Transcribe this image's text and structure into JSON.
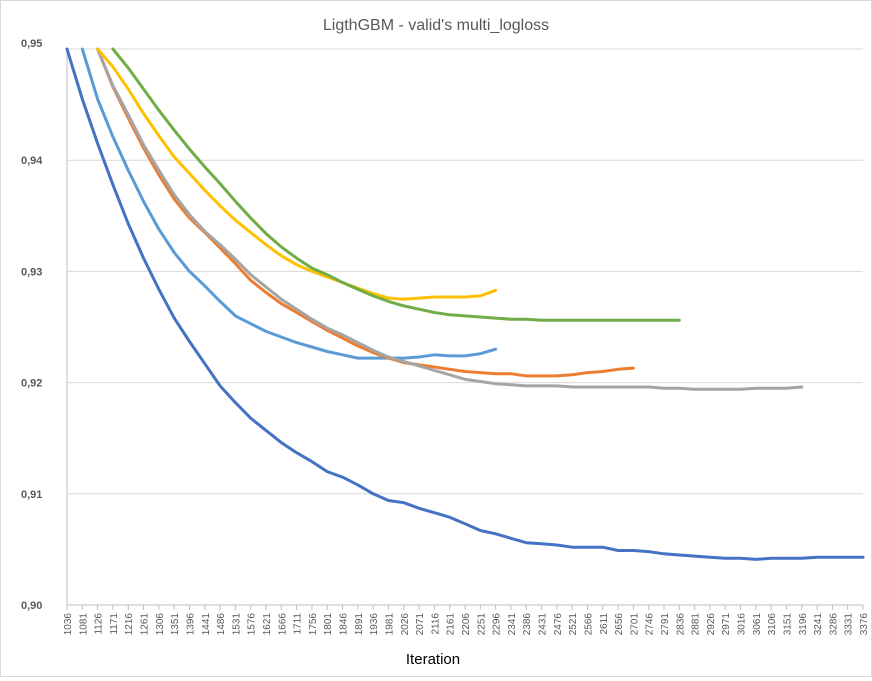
{
  "chart_data": {
    "type": "line",
    "title": "LigthGBM - valid's multi_logloss",
    "xlabel": "Iteration",
    "ylabel": "",
    "ylim": [
      0.9,
      0.95
    ],
    "xlim": [
      1036,
      3376
    ],
    "grid": "horizontal",
    "y_ticks": [
      "0,90",
      "0,91",
      "0,92",
      "0,93",
      "0,94",
      "0,95"
    ],
    "x_ticks": [
      "1036",
      "1081",
      "1126",
      "1171",
      "1216",
      "1261",
      "1306",
      "1351",
      "1396",
      "1441",
      "1486",
      "1531",
      "1576",
      "1621",
      "1666",
      "1711",
      "1756",
      "1801",
      "1846",
      "1891",
      "1936",
      "1981",
      "2026",
      "2071",
      "2116",
      "2161",
      "2206",
      "2251",
      "2296",
      "2341",
      "2386",
      "2431",
      "2476",
      "2521",
      "2566",
      "2611",
      "2656",
      "2701",
      "2746",
      "2791",
      "2836",
      "2881",
      "2926",
      "2971",
      "3016",
      "3061",
      "3106",
      "3151",
      "3196",
      "3241",
      "3286",
      "3331",
      "3376"
    ],
    "series": [
      {
        "color": "#4472c4",
        "x": [
          1036,
          1081,
          1126,
          1171,
          1216,
          1261,
          1306,
          1351,
          1396,
          1441,
          1486,
          1531,
          1576,
          1621,
          1666,
          1711,
          1756,
          1801,
          1846,
          1891,
          1936,
          1981,
          2026,
          2071,
          2116,
          2161,
          2206,
          2251,
          2296,
          2341,
          2386,
          2431,
          2476,
          2521,
          2566,
          2611,
          2656,
          2701,
          2746,
          2791,
          2836,
          2881,
          2926,
          2971,
          3016,
          3061,
          3106,
          3151,
          3196,
          3241,
          3286,
          3331,
          3376
        ],
        "values": [
          0.95,
          0.9455,
          0.9415,
          0.9378,
          0.9343,
          0.9312,
          0.9284,
          0.9258,
          0.9237,
          0.9217,
          0.9197,
          0.9182,
          0.9168,
          0.9157,
          0.9146,
          0.9137,
          0.9129,
          0.912,
          0.9115,
          0.9108,
          0.91,
          0.9094,
          0.9092,
          0.9087,
          0.9083,
          0.9079,
          0.9073,
          0.9067,
          0.9064,
          0.906,
          0.9056,
          0.9055,
          0.9054,
          0.9052,
          0.9052,
          0.9052,
          0.9049,
          0.9049,
          0.9048,
          0.9046,
          0.9045,
          0.9044,
          0.9043,
          0.9042,
          0.9042,
          0.9041,
          0.9042,
          0.9042,
          0.9042,
          0.9043,
          0.9043,
          0.9043,
          0.9043
        ]
      },
      {
        "color": "#5b9bd5",
        "x": [
          1081,
          1126,
          1171,
          1216,
          1261,
          1306,
          1351,
          1396,
          1441,
          1486,
          1531,
          1576,
          1621,
          1666,
          1711,
          1756,
          1801,
          1846,
          1891,
          1936,
          1981,
          2026,
          2071,
          2116,
          2161,
          2206,
          2251,
          2296
        ],
        "values": [
          0.95,
          0.9455,
          0.9421,
          0.9391,
          0.9363,
          0.9338,
          0.9317,
          0.93,
          0.9287,
          0.9273,
          0.926,
          0.9253,
          0.9246,
          0.9241,
          0.9236,
          0.9232,
          0.9228,
          0.9225,
          0.9222,
          0.9222,
          0.9222,
          0.9222,
          0.9223,
          0.9225,
          0.9224,
          0.9224,
          0.9226,
          0.923
        ]
      },
      {
        "color": "#ed7d31",
        "x": [
          1126,
          1171,
          1216,
          1261,
          1306,
          1351,
          1396,
          1441,
          1486,
          1531,
          1576,
          1621,
          1666,
          1711,
          1756,
          1801,
          1846,
          1891,
          1936,
          1981,
          2026,
          2071,
          2116,
          2161,
          2206,
          2251,
          2296,
          2341,
          2386,
          2431,
          2476,
          2521,
          2566,
          2611,
          2656,
          2701
        ],
        "values": [
          0.95,
          0.9466,
          0.9438,
          0.9411,
          0.9387,
          0.9365,
          0.9348,
          0.9335,
          0.9321,
          0.9307,
          0.9292,
          0.9281,
          0.9271,
          0.9263,
          0.9255,
          0.9247,
          0.924,
          0.9233,
          0.9227,
          0.9222,
          0.9218,
          0.9216,
          0.9214,
          0.9212,
          0.921,
          0.9209,
          0.9208,
          0.9208,
          0.9206,
          0.9206,
          0.9206,
          0.9207,
          0.9209,
          0.921,
          0.9212,
          0.9213
        ]
      },
      {
        "color": "#a5a5a5",
        "x": [
          1126,
          1171,
          1216,
          1261,
          1306,
          1351,
          1396,
          1441,
          1486,
          1531,
          1576,
          1621,
          1666,
          1711,
          1756,
          1801,
          1846,
          1891,
          1936,
          1981,
          2026,
          2071,
          2116,
          2161,
          2206,
          2251,
          2296,
          2341,
          2386,
          2431,
          2476,
          2521,
          2566,
          2611,
          2656,
          2701,
          2746,
          2791,
          2836,
          2881,
          2926,
          2971,
          3016,
          3061,
          3106,
          3151,
          3196
        ],
        "values": [
          0.95,
          0.9467,
          0.9441,
          0.9414,
          0.9391,
          0.9369,
          0.9351,
          0.9336,
          0.9324,
          0.9311,
          0.9297,
          0.9286,
          0.9275,
          0.9266,
          0.9257,
          0.9249,
          0.9243,
          0.9236,
          0.9229,
          0.9223,
          0.9219,
          0.9215,
          0.9211,
          0.9207,
          0.9203,
          0.9201,
          0.9199,
          0.9198,
          0.9197,
          0.9197,
          0.9197,
          0.9196,
          0.9196,
          0.9196,
          0.9196,
          0.9196,
          0.9196,
          0.9195,
          0.9195,
          0.9194,
          0.9194,
          0.9194,
          0.9194,
          0.9195,
          0.9195,
          0.9195,
          0.9196
        ]
      },
      {
        "color": "#ffc000",
        "x": [
          1126,
          1171,
          1216,
          1261,
          1306,
          1351,
          1396,
          1441,
          1486,
          1531,
          1576,
          1621,
          1666,
          1711,
          1756,
          1801,
          1846,
          1891,
          1936,
          1981,
          2026,
          2071,
          2116,
          2161,
          2206,
          2251,
          2296
        ],
        "values": [
          0.95,
          0.9484,
          0.9464,
          0.9442,
          0.9422,
          0.9403,
          0.9388,
          0.9373,
          0.9359,
          0.9346,
          0.9335,
          0.9324,
          0.9314,
          0.9306,
          0.93,
          0.9295,
          0.929,
          0.9285,
          0.928,
          0.9276,
          0.9275,
          0.9276,
          0.9277,
          0.9277,
          0.9277,
          0.9278,
          0.9283
        ]
      },
      {
        "color": "#70ad47",
        "x": [
          1171,
          1216,
          1261,
          1306,
          1351,
          1396,
          1441,
          1486,
          1531,
          1576,
          1621,
          1666,
          1711,
          1756,
          1801,
          1846,
          1891,
          1936,
          1981,
          2026,
          2071,
          2116,
          2161,
          2206,
          2251,
          2296,
          2341,
          2386,
          2431,
          2476,
          2521,
          2566,
          2611,
          2656,
          2701,
          2746,
          2791,
          2836
        ],
        "values": [
          0.95,
          0.9483,
          0.9464,
          0.9445,
          0.9427,
          0.941,
          0.9394,
          0.9379,
          0.9363,
          0.9348,
          0.9334,
          0.9322,
          0.9312,
          0.9303,
          0.9297,
          0.929,
          0.9284,
          0.9278,
          0.9273,
          0.9269,
          0.9266,
          0.9263,
          0.9261,
          0.926,
          0.9259,
          0.9258,
          0.9257,
          0.9257,
          0.9256,
          0.9256,
          0.9256,
          0.9256,
          0.9256,
          0.9256,
          0.9256,
          0.9256,
          0.9256,
          0.9256
        ]
      }
    ]
  }
}
